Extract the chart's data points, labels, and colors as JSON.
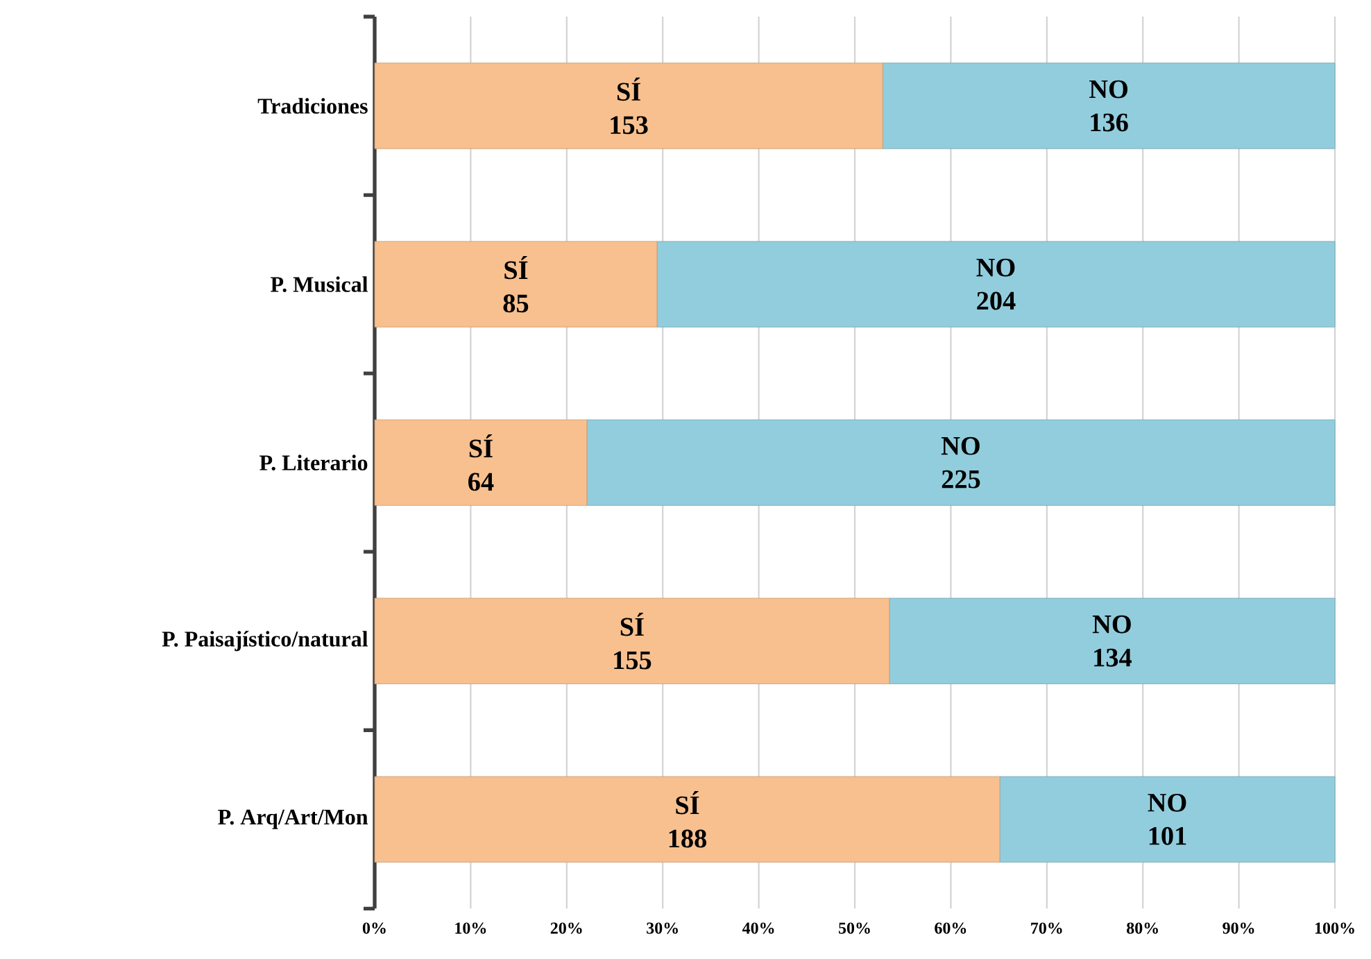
{
  "chart_data": {
    "type": "bar",
    "orientation": "horizontal",
    "stacked": true,
    "grid": "x",
    "categories": [
      "Tradiciones",
      "P. Musical",
      "P. Literario",
      "P. Paisajístico/natural",
      "P. Arq/Art/Mon"
    ],
    "series": [
      {
        "name": "SÍ",
        "color": "#f8c08f",
        "values": [
          52.9,
          29.4,
          22.1,
          53.6,
          65.1
        ]
      },
      {
        "name": "NO",
        "color": "#92cddd",
        "values": [
          47.1,
          70.6,
          77.9,
          46.4,
          34.9
        ]
      }
    ],
    "annotations": [
      "153",
      "85",
      "64",
      "155",
      "188",
      "136",
      "204",
      "225",
      "134",
      "101"
    ],
    "xlim": [
      0,
      100
    ],
    "xticks": [
      {
        "value": 0,
        "label": "0%"
      },
      {
        "value": 10,
        "label": "10%"
      },
      {
        "value": 20,
        "label": "20%"
      },
      {
        "value": 30,
        "label": "30%"
      },
      {
        "value": 40,
        "label": "40%"
      },
      {
        "value": 50,
        "label": "50%"
      },
      {
        "value": 60,
        "label": "60%"
      },
      {
        "value": 70,
        "label": "70%"
      },
      {
        "value": 80,
        "label": "80%"
      },
      {
        "value": 90,
        "label": "90%"
      },
      {
        "value": 100,
        "label": "100%"
      }
    ]
  }
}
